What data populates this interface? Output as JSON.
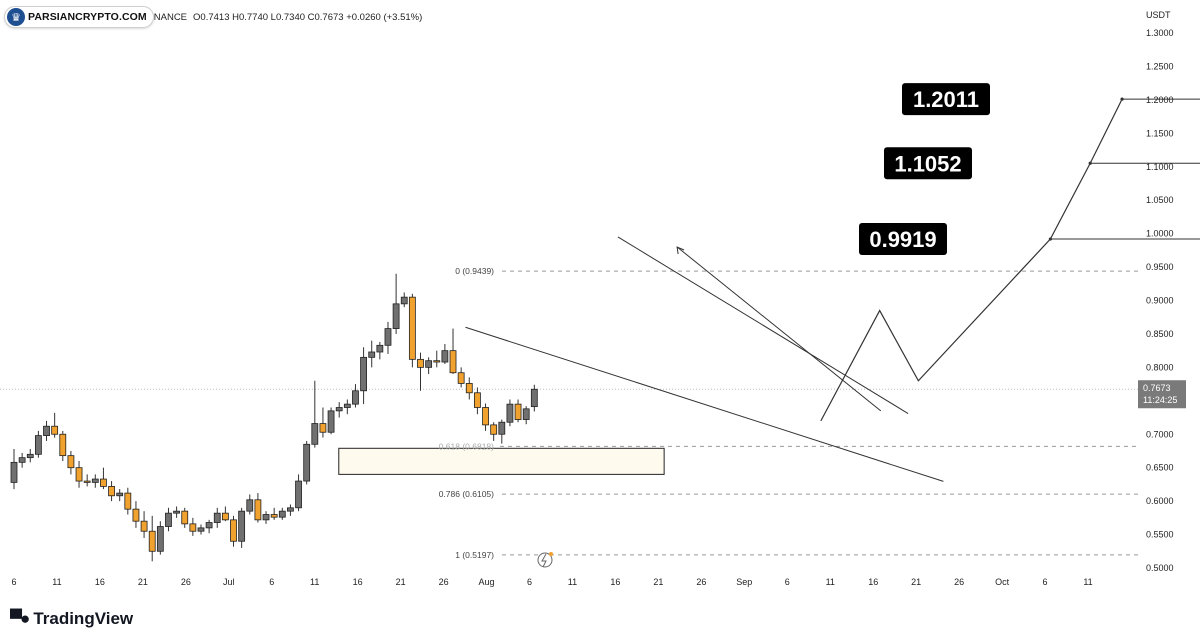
{
  "header": {
    "brand": "PARSIANCRYPTO.COM",
    "exchange_fragment": "NANCE",
    "ohlc": "O0.7413  H0.7740  L0.7340  C0.7673  +0.0260 (+3.51%)"
  },
  "footer": {
    "logo_text": "TradingView"
  },
  "colors": {
    "bull": "#707070",
    "bear": "#f0a12e",
    "line": "#333333",
    "grid_dash": "#9a9a9a",
    "target_bg": "#000000",
    "target_fg": "#ffffff",
    "zone_fill": "#fffaee"
  },
  "chart_data": {
    "type": "candlestick",
    "unit_label": "USDT",
    "y_range": [
      0.49,
      1.32
    ],
    "y_ticks": [
      "1.3000",
      "1.2500",
      "1.2000",
      "1.1500",
      "1.1000",
      "1.0500",
      "1.0000",
      "0.9500",
      "0.9000",
      "0.8500",
      "0.8000",
      "0.7000",
      "0.6500",
      "0.6000",
      "0.5500",
      "0.5000"
    ],
    "x_ticks": [
      "6",
      "11",
      "16",
      "21",
      "26",
      "Jul",
      "6",
      "11",
      "16",
      "21",
      "26",
      "Aug",
      "6",
      "11",
      "16",
      "21",
      "26",
      "Sep",
      "6",
      "11",
      "16",
      "21",
      "26",
      "Oct",
      "6",
      "11"
    ],
    "current_price": {
      "value": 0.7673,
      "label": "0.7673",
      "countdown": "11:24:25"
    },
    "fib_levels": [
      {
        "label": "0 (0.9439)",
        "value": 0.9439,
        "dashed_line": true
      },
      {
        "label": "0.618 (0.6818)",
        "value": 0.6818,
        "dashed_line": true
      },
      {
        "label": "0.786 (0.6105)",
        "value": 0.6105,
        "dashed_line": true
      },
      {
        "label": "1 (0.5197)",
        "value": 0.5197,
        "dashed_line": true
      }
    ],
    "targets": [
      {
        "label": "1.2011",
        "value": 1.2011
      },
      {
        "label": "1.1052",
        "value": 1.1052
      },
      {
        "label": "0.9919",
        "value": 0.9919
      }
    ],
    "demand_zone": {
      "high": 0.679,
      "low": 0.64
    },
    "candles": [
      [
        0.628,
        0.678,
        0.618,
        0.658
      ],
      [
        0.658,
        0.672,
        0.65,
        0.665
      ],
      [
        0.665,
        0.678,
        0.658,
        0.67
      ],
      [
        0.67,
        0.705,
        0.665,
        0.698
      ],
      [
        0.698,
        0.72,
        0.69,
        0.712
      ],
      [
        0.712,
        0.732,
        0.695,
        0.7
      ],
      [
        0.7,
        0.705,
        0.66,
        0.668
      ],
      [
        0.668,
        0.675,
        0.64,
        0.65
      ],
      [
        0.65,
        0.66,
        0.62,
        0.63
      ],
      [
        0.63,
        0.64,
        0.622,
        0.628
      ],
      [
        0.628,
        0.64,
        0.62,
        0.633
      ],
      [
        0.633,
        0.65,
        0.618,
        0.622
      ],
      [
        0.622,
        0.63,
        0.6,
        0.608
      ],
      [
        0.608,
        0.618,
        0.6,
        0.612
      ],
      [
        0.612,
        0.62,
        0.58,
        0.588
      ],
      [
        0.588,
        0.6,
        0.56,
        0.57
      ],
      [
        0.57,
        0.585,
        0.545,
        0.555
      ],
      [
        0.555,
        0.578,
        0.51,
        0.525
      ],
      [
        0.525,
        0.57,
        0.52,
        0.562
      ],
      [
        0.562,
        0.59,
        0.555,
        0.582
      ],
      [
        0.582,
        0.592,
        0.575,
        0.585
      ],
      [
        0.585,
        0.59,
        0.56,
        0.566
      ],
      [
        0.566,
        0.575,
        0.548,
        0.555
      ],
      [
        0.555,
        0.565,
        0.55,
        0.56
      ],
      [
        0.56,
        0.572,
        0.552,
        0.568
      ],
      [
        0.568,
        0.59,
        0.56,
        0.582
      ],
      [
        0.582,
        0.592,
        0.57,
        0.572
      ],
      [
        0.572,
        0.578,
        0.532,
        0.54
      ],
      [
        0.54,
        0.59,
        0.53,
        0.585
      ],
      [
        0.585,
        0.61,
        0.58,
        0.602
      ],
      [
        0.602,
        0.612,
        0.568,
        0.572
      ],
      [
        0.572,
        0.585,
        0.566,
        0.58
      ],
      [
        0.58,
        0.59,
        0.572,
        0.576
      ],
      [
        0.576,
        0.59,
        0.572,
        0.585
      ],
      [
        0.585,
        0.595,
        0.578,
        0.59
      ],
      [
        0.59,
        0.64,
        0.585,
        0.63
      ],
      [
        0.63,
        0.69,
        0.625,
        0.685
      ],
      [
        0.685,
        0.78,
        0.68,
        0.716
      ],
      [
        0.716,
        0.74,
        0.695,
        0.703
      ],
      [
        0.703,
        0.74,
        0.7,
        0.735
      ],
      [
        0.735,
        0.748,
        0.725,
        0.74
      ],
      [
        0.74,
        0.752,
        0.73,
        0.745
      ],
      [
        0.745,
        0.775,
        0.74,
        0.765
      ],
      [
        0.765,
        0.83,
        0.745,
        0.815
      ],
      [
        0.815,
        0.84,
        0.8,
        0.823
      ],
      [
        0.823,
        0.838,
        0.812,
        0.833
      ],
      [
        0.833,
        0.868,
        0.82,
        0.858
      ],
      [
        0.858,
        0.94,
        0.85,
        0.895
      ],
      [
        0.895,
        0.912,
        0.89,
        0.905
      ],
      [
        0.905,
        0.91,
        0.8,
        0.812
      ],
      [
        0.812,
        0.822,
        0.765,
        0.8
      ],
      [
        0.8,
        0.815,
        0.79,
        0.81
      ],
      [
        0.81,
        0.825,
        0.8,
        0.808
      ],
      [
        0.808,
        0.835,
        0.805,
        0.825
      ],
      [
        0.825,
        0.858,
        0.79,
        0.792
      ],
      [
        0.792,
        0.8,
        0.77,
        0.776
      ],
      [
        0.776,
        0.785,
        0.752,
        0.762
      ],
      [
        0.762,
        0.77,
        0.73,
        0.74
      ],
      [
        0.74,
        0.746,
        0.705,
        0.714
      ],
      [
        0.714,
        0.718,
        0.69,
        0.7
      ],
      [
        0.7,
        0.722,
        0.686,
        0.718
      ],
      [
        0.718,
        0.752,
        0.712,
        0.745
      ],
      [
        0.745,
        0.752,
        0.718,
        0.722
      ],
      [
        0.722,
        0.742,
        0.715,
        0.738
      ],
      [
        0.7413,
        0.774,
        0.734,
        0.7673
      ]
    ],
    "projection_path": [
      [
        0.7213,
        0.72
      ],
      [
        0.773,
        0.885
      ],
      [
        0.807,
        0.78
      ],
      [
        0.923,
        0.9919
      ],
      [
        0.958,
        1.1052
      ],
      [
        0.986,
        1.2011
      ]
    ],
    "target_lines": [
      [
        0.923,
        0.9919,
        1.27
      ],
      [
        0.958,
        1.1052,
        1.31
      ],
      [
        0.986,
        1.2011,
        1.35
      ]
    ],
    "wedge_lines": [
      [
        [
          0.409,
          0.86
        ],
        [
          0.829,
          0.6295
        ]
      ],
      [
        [
          0.543,
          0.995
        ],
        [
          0.798,
          0.731
        ]
      ],
      [
        [
          0.595,
          0.98
        ],
        [
          0.774,
          0.735
        ]
      ]
    ]
  }
}
